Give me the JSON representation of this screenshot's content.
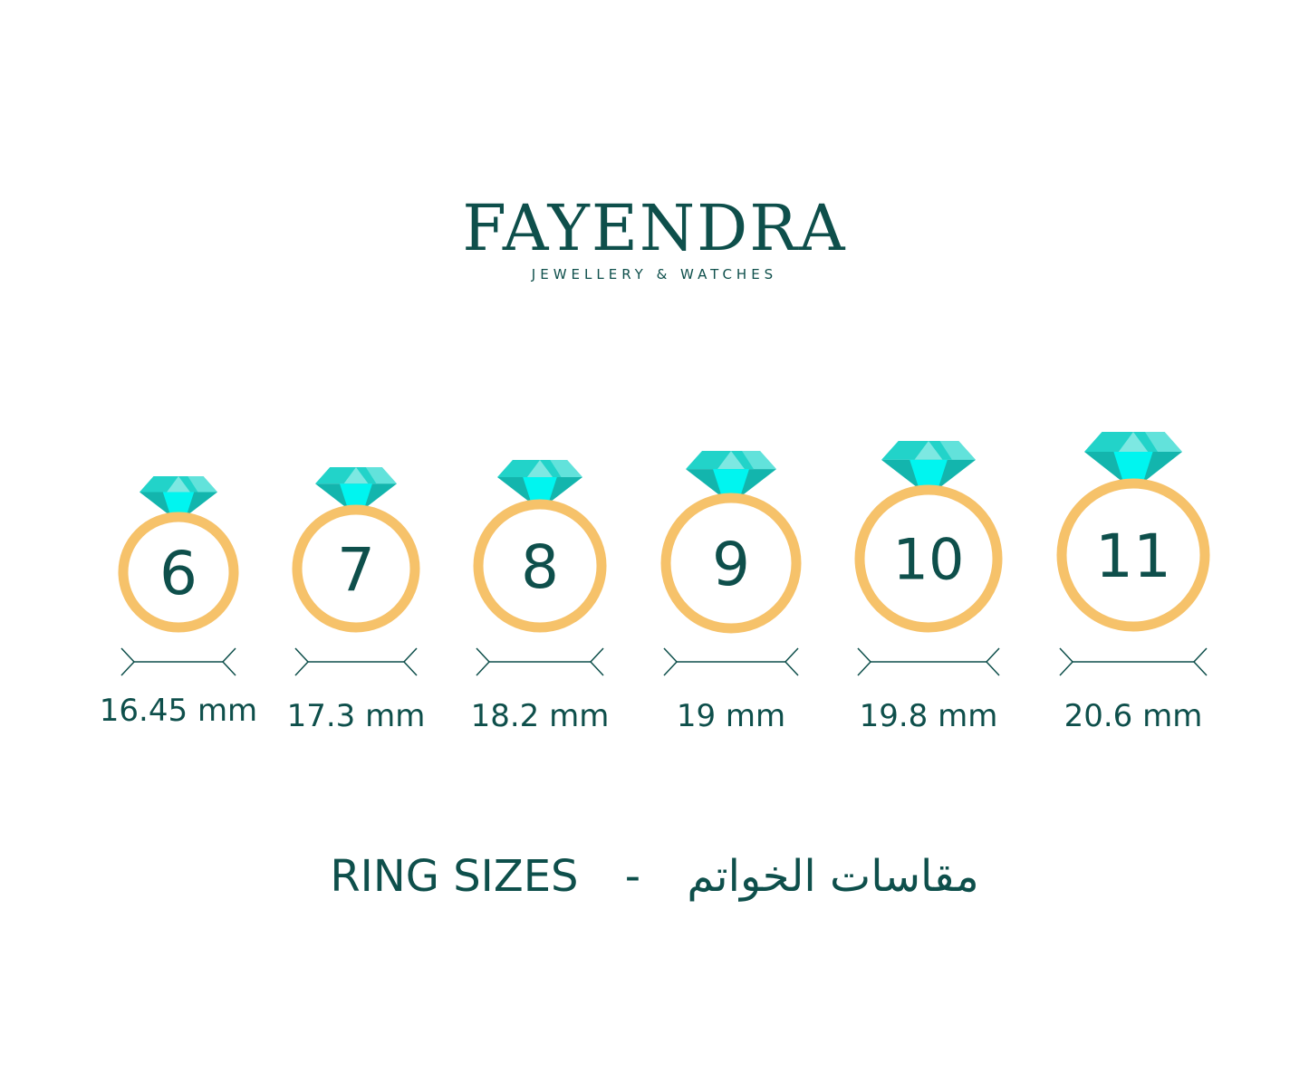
{
  "brand": {
    "name": "FAYENDRA",
    "tagline": "JEWELLERY & WATCHES"
  },
  "colors": {
    "text": "#0e4f4b",
    "ring": "#f6c26a",
    "gem_light": "#7de8e2",
    "gem_mid": "#22d3c9",
    "gem_dark": "#13b5ad",
    "gem_bright": "#00f5f0"
  },
  "rings": [
    {
      "size": "6",
      "diameter": "16.45 mm"
    },
    {
      "size": "7",
      "diameter": "17.3 mm"
    },
    {
      "size": "8",
      "diameter": "18.2 mm"
    },
    {
      "size": "9",
      "diameter": "19 mm"
    },
    {
      "size": "10",
      "diameter": "19.8 mm"
    },
    {
      "size": "11",
      "diameter": "20.6 mm"
    }
  ],
  "footer": {
    "english": "RING SIZES",
    "separator": "-",
    "arabic": "مقاسات الخواتم"
  }
}
